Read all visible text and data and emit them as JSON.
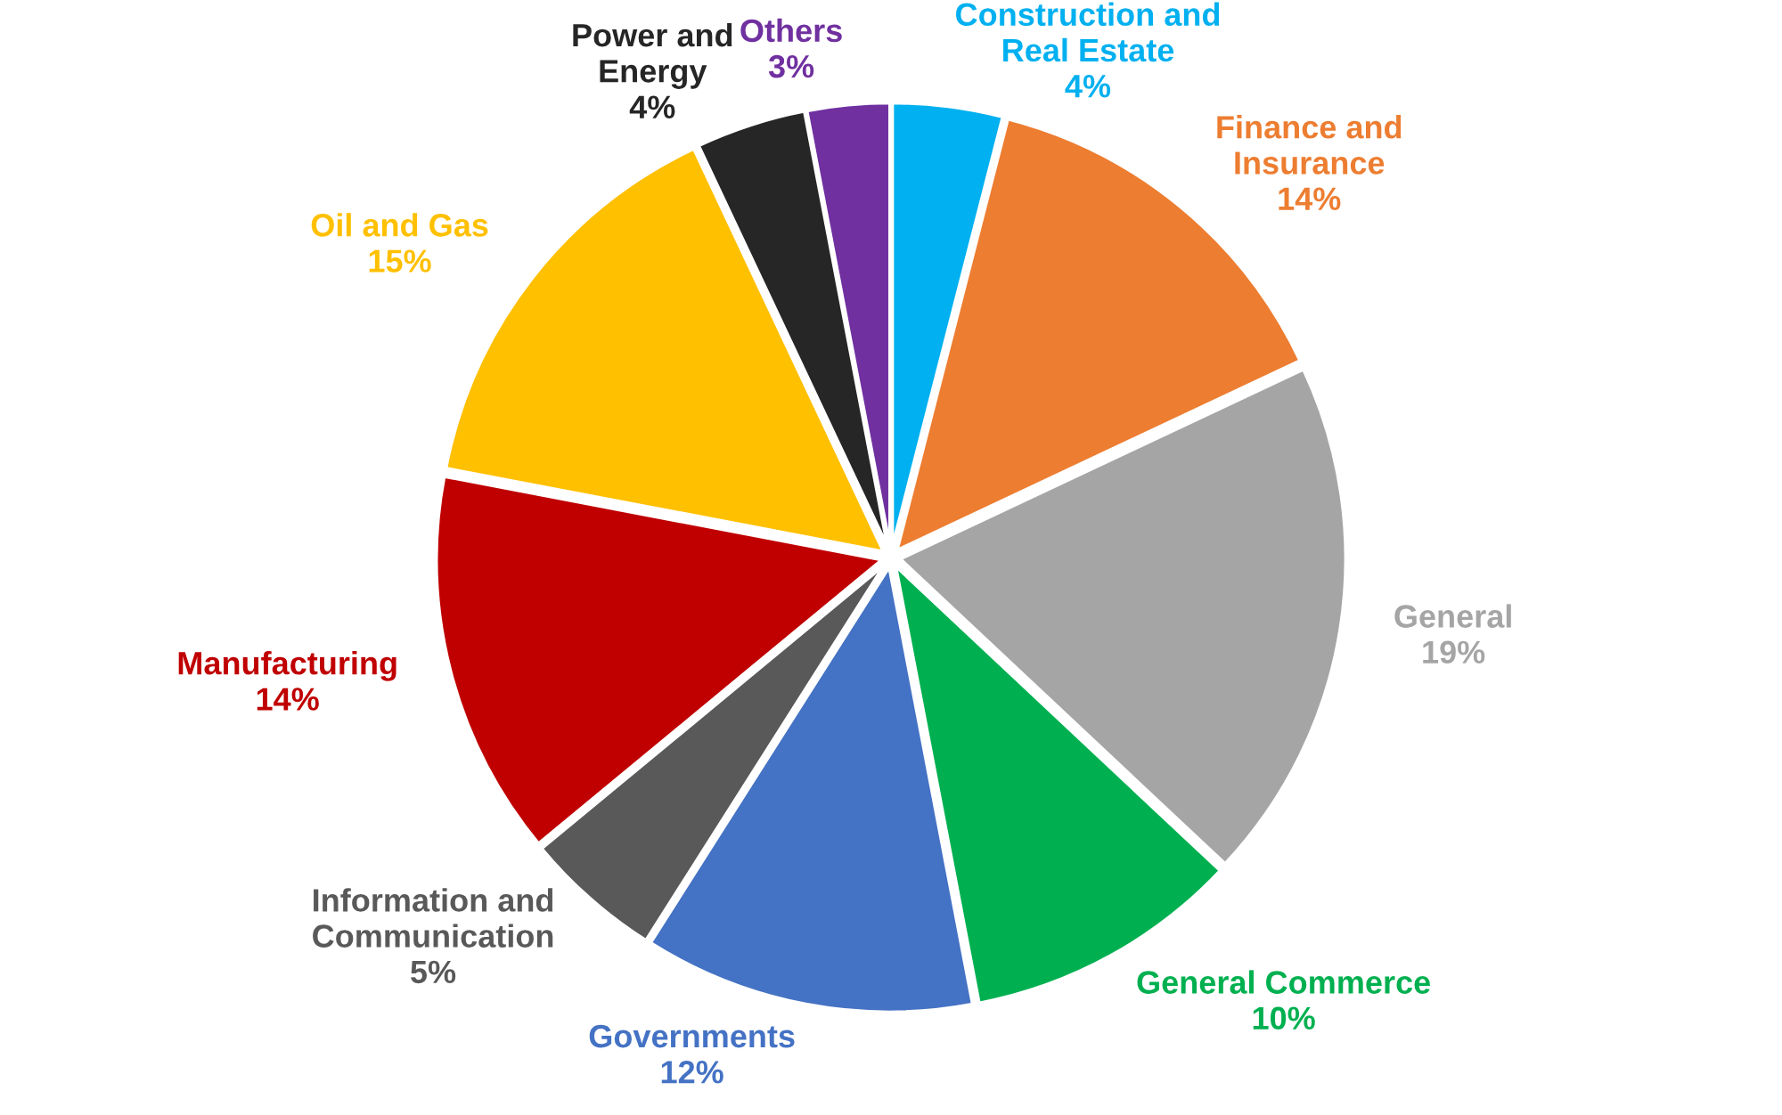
{
  "chart_data": {
    "type": "pie",
    "categories": [
      "Construction and\nReal Estate",
      "Finance and\nInsurance",
      "General",
      "General Commerce",
      "Governments",
      "Information and\nCommunication",
      "Manufacturing",
      "Oil and Gas",
      "Power and\nEnergy",
      "Others"
    ],
    "values": [
      4,
      14,
      19,
      10,
      12,
      5,
      14,
      15,
      4,
      3
    ],
    "value_labels": [
      "4%",
      "14%",
      "19%",
      "10%",
      "12%",
      "5%",
      "14%",
      "15%",
      "4%",
      "3%"
    ],
    "colors": [
      "#00b0f0",
      "#ed7d31",
      "#a5a5a5",
      "#00b050",
      "#4472c4",
      "#595959",
      "#c00000",
      "#ffc000",
      "#262626",
      "#7030a0"
    ],
    "legend": false
  }
}
